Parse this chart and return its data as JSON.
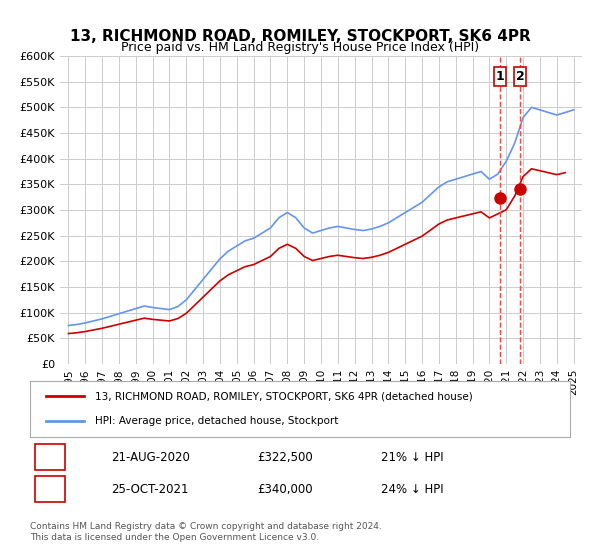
{
  "title": "13, RICHMOND ROAD, ROMILEY, STOCKPORT, SK6 4PR",
  "subtitle": "Price paid vs. HM Land Registry's House Price Index (HPI)",
  "xlabel": "",
  "ylabel": "",
  "ylim": [
    0,
    600000
  ],
  "yticks": [
    0,
    50000,
    100000,
    150000,
    200000,
    250000,
    300000,
    350000,
    400000,
    450000,
    500000,
    550000,
    600000
  ],
  "ytick_labels": [
    "£0",
    "£50K",
    "£100K",
    "£150K",
    "£200K",
    "£250K",
    "£300K",
    "£350K",
    "£400K",
    "£450K",
    "£500K",
    "£550K",
    "£600K"
  ],
  "hpi_color": "#6495ED",
  "price_color": "#CC0000",
  "marker_color": "#CC0000",
  "vline_color": "#FF4444",
  "bg_color": "#ffffff",
  "grid_color": "#cccccc",
  "legend_label_price": "13, RICHMOND ROAD, ROMILEY, STOCKPORT, SK6 4PR (detached house)",
  "legend_label_hpi": "HPI: Average price, detached house, Stockport",
  "transaction1_label": "1",
  "transaction1_date": "21-AUG-2020",
  "transaction1_price": "£322,500",
  "transaction1_pct": "21% ↓ HPI",
  "transaction2_label": "2",
  "transaction2_date": "25-OCT-2021",
  "transaction2_price": "£340,000",
  "transaction2_pct": "24% ↓ HPI",
  "footnote1": "Contains HM Land Registry data © Crown copyright and database right 2024.",
  "footnote2": "This data is licensed under the Open Government Licence v3.0.",
  "vline1_x": 2020.65,
  "vline2_x": 2021.82,
  "marker1_x": 2020.65,
  "marker1_y": 322500,
  "marker2_x": 2021.82,
  "marker2_y": 340000,
  "xlim_left": 1994.5,
  "xlim_right": 2025.5
}
